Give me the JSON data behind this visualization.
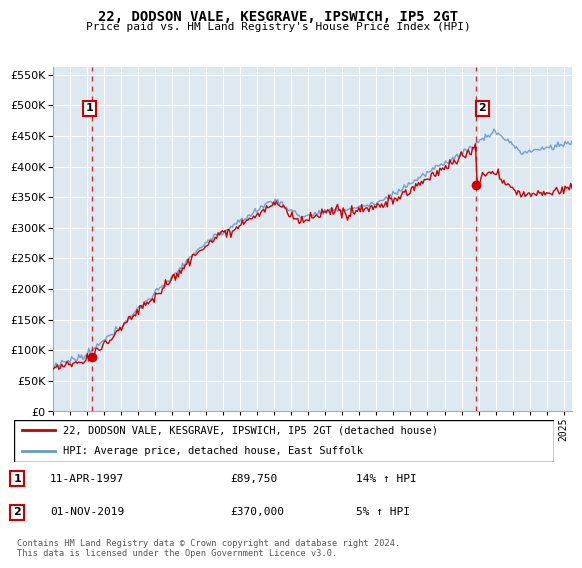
{
  "title": "22, DODSON VALE, KESGRAVE, IPSWICH, IP5 2GT",
  "subtitle": "Price paid vs. HM Land Registry's House Price Index (HPI)",
  "legend_line1": "22, DODSON VALE, KESGRAVE, IPSWICH, IP5 2GT (detached house)",
  "legend_line2": "HPI: Average price, detached house, East Suffolk",
  "sale1_date": "11-APR-1997",
  "sale1_price": "£89,750",
  "sale1_hpi": "14% ↑ HPI",
  "sale1_year": 1997.28,
  "sale1_value": 89750,
  "sale2_date": "01-NOV-2019",
  "sale2_price": "£370,000",
  "sale2_hpi": "5% ↑ HPI",
  "sale2_year": 2019.83,
  "sale2_value": 370000,
  "hpi_color": "#6699cc",
  "sale_color": "#cc0000",
  "vline_color": "#cc0000",
  "dot_color": "#cc0000",
  "ylim": [
    0,
    562500
  ],
  "yticks": [
    0,
    50000,
    100000,
    150000,
    200000,
    250000,
    300000,
    350000,
    400000,
    450000,
    500000,
    550000
  ],
  "xlim_start": 1995.0,
  "xlim_end": 2025.5,
  "plot_bg_color": "#dde8f0",
  "grid_color": "#ffffff",
  "footer": "Contains HM Land Registry data © Crown copyright and database right 2024.\nThis data is licensed under the Open Government Licence v3.0."
}
